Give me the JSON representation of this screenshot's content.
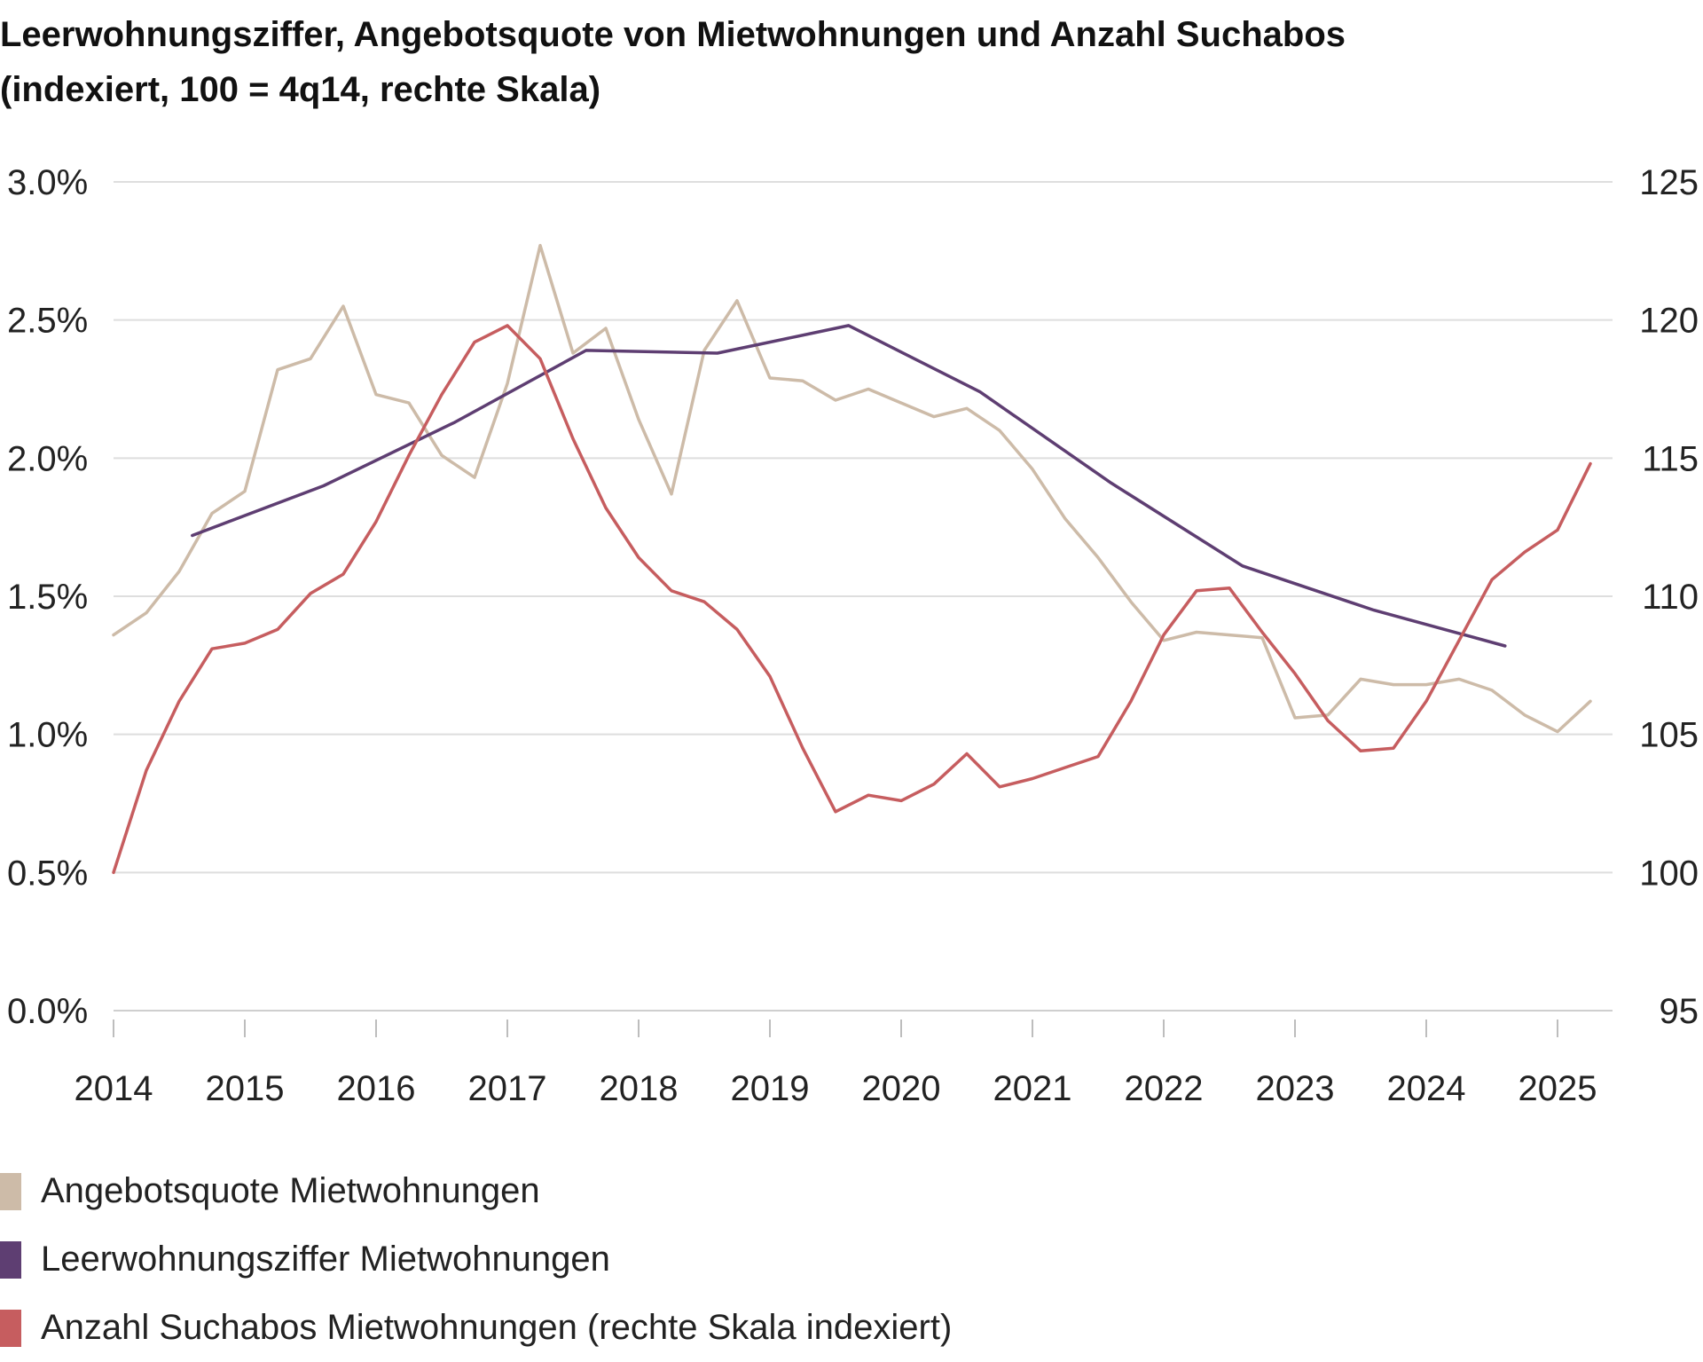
{
  "title_line1": "Leerwohnungsziffer, Angebotsquote von Mietwohnungen und Anzahl Suchabos",
  "title_line2": "(indexiert, 100 = 4q14, rechte Skala)",
  "chart_data": {
    "type": "line",
    "title": "Leerwohnungsziffer, Angebotsquote von Mietwohnungen und Anzahl Suchabos (indexiert, 100 = 4q14, rechte Skala)",
    "xlim": [
      2014,
      2025.5
    ],
    "x_ticks": [
      "2014",
      "2015",
      "2016",
      "2017",
      "2018",
      "2019",
      "2020",
      "2021",
      "2022",
      "2023",
      "2024",
      "2025"
    ],
    "left_axis": {
      "ylim": [
        0.0,
        3.0
      ],
      "ticks": [
        "0.0%",
        "0.5%",
        "1.0%",
        "1.5%",
        "2.0%",
        "2.5%",
        "3.0%"
      ]
    },
    "right_axis": {
      "ylim": [
        95,
        125
      ],
      "ticks": [
        "95",
        "100",
        "105",
        "110",
        "115",
        "120",
        "125"
      ]
    },
    "grid": true,
    "legend_position": "bottom-left",
    "series": [
      {
        "name": "Angebotsquote Mietwohnungen",
        "axis": "left",
        "color": "#cdbba8",
        "x": [
          2014.0,
          2014.25,
          2014.5,
          2014.75,
          2015.0,
          2015.25,
          2015.5,
          2015.75,
          2016.0,
          2016.25,
          2016.5,
          2016.75,
          2017.0,
          2017.25,
          2017.5,
          2017.75,
          2018.0,
          2018.25,
          2018.5,
          2018.75,
          2019.0,
          2019.25,
          2019.5,
          2019.75,
          2020.0,
          2020.25,
          2020.5,
          2020.75,
          2021.0,
          2021.25,
          2021.5,
          2021.75,
          2022.0,
          2022.25,
          2022.5,
          2022.75,
          2023.0,
          2023.25,
          2023.5,
          2023.75,
          2024.0,
          2024.25,
          2024.5,
          2024.75,
          2025.0,
          2025.25
        ],
        "values": [
          1.36,
          1.44,
          1.59,
          1.8,
          1.88,
          2.32,
          2.36,
          2.55,
          2.23,
          2.2,
          2.01,
          1.93,
          2.27,
          2.77,
          2.38,
          2.47,
          2.14,
          1.87,
          2.39,
          2.57,
          2.29,
          2.28,
          2.21,
          2.25,
          2.2,
          2.15,
          2.18,
          2.1,
          1.96,
          1.78,
          1.64,
          1.48,
          1.34,
          1.37,
          1.36,
          1.35,
          1.06,
          1.07,
          1.2,
          1.18,
          1.18,
          1.2,
          1.16,
          1.07,
          1.01,
          1.12
        ]
      },
      {
        "name": "Leerwohnungsziffer Mietwohnungen",
        "axis": "left",
        "color": "#5e3e72",
        "x": [
          2014.6,
          2015.6,
          2016.6,
          2017.6,
          2018.6,
          2019.6,
          2020.6,
          2021.6,
          2022.6,
          2023.6,
          2024.6
        ],
        "values": [
          1.72,
          1.9,
          2.13,
          2.39,
          2.38,
          2.48,
          2.24,
          1.91,
          1.61,
          1.45,
          1.32
        ]
      },
      {
        "name": "Anzahl Suchabos Mietwohnungen (rechte Skala indexiert)",
        "axis": "right",
        "color": "#c65d5f",
        "x": [
          2014.0,
          2014.25,
          2014.5,
          2014.75,
          2015.0,
          2015.25,
          2015.5,
          2015.75,
          2016.0,
          2016.25,
          2016.5,
          2016.75,
          2017.0,
          2017.25,
          2017.5,
          2017.75,
          2018.0,
          2018.25,
          2018.5,
          2018.75,
          2019.0,
          2019.25,
          2019.5,
          2019.75,
          2020.0,
          2020.25,
          2020.5,
          2020.75,
          2021.0,
          2021.25,
          2021.5,
          2021.75,
          2022.0,
          2022.25,
          2022.5,
          2022.75,
          2023.0,
          2023.25,
          2023.5,
          2023.75,
          2024.0,
          2024.25,
          2024.5,
          2024.75,
          2025.0,
          2025.25
        ],
        "values": [
          100.0,
          103.7,
          106.2,
          108.1,
          108.3,
          108.8,
          110.1,
          110.8,
          112.7,
          115.1,
          117.3,
          119.2,
          119.8,
          118.6,
          115.7,
          113.2,
          111.4,
          110.2,
          109.8,
          108.8,
          107.1,
          104.5,
          102.2,
          102.8,
          102.6,
          103.2,
          104.3,
          103.1,
          103.4,
          103.8,
          104.2,
          106.2,
          108.6,
          110.2,
          110.3,
          108.7,
          107.2,
          105.5,
          104.4,
          104.5,
          106.2,
          108.4,
          110.6,
          111.6,
          112.4,
          114.8
        ]
      }
    ]
  }
}
